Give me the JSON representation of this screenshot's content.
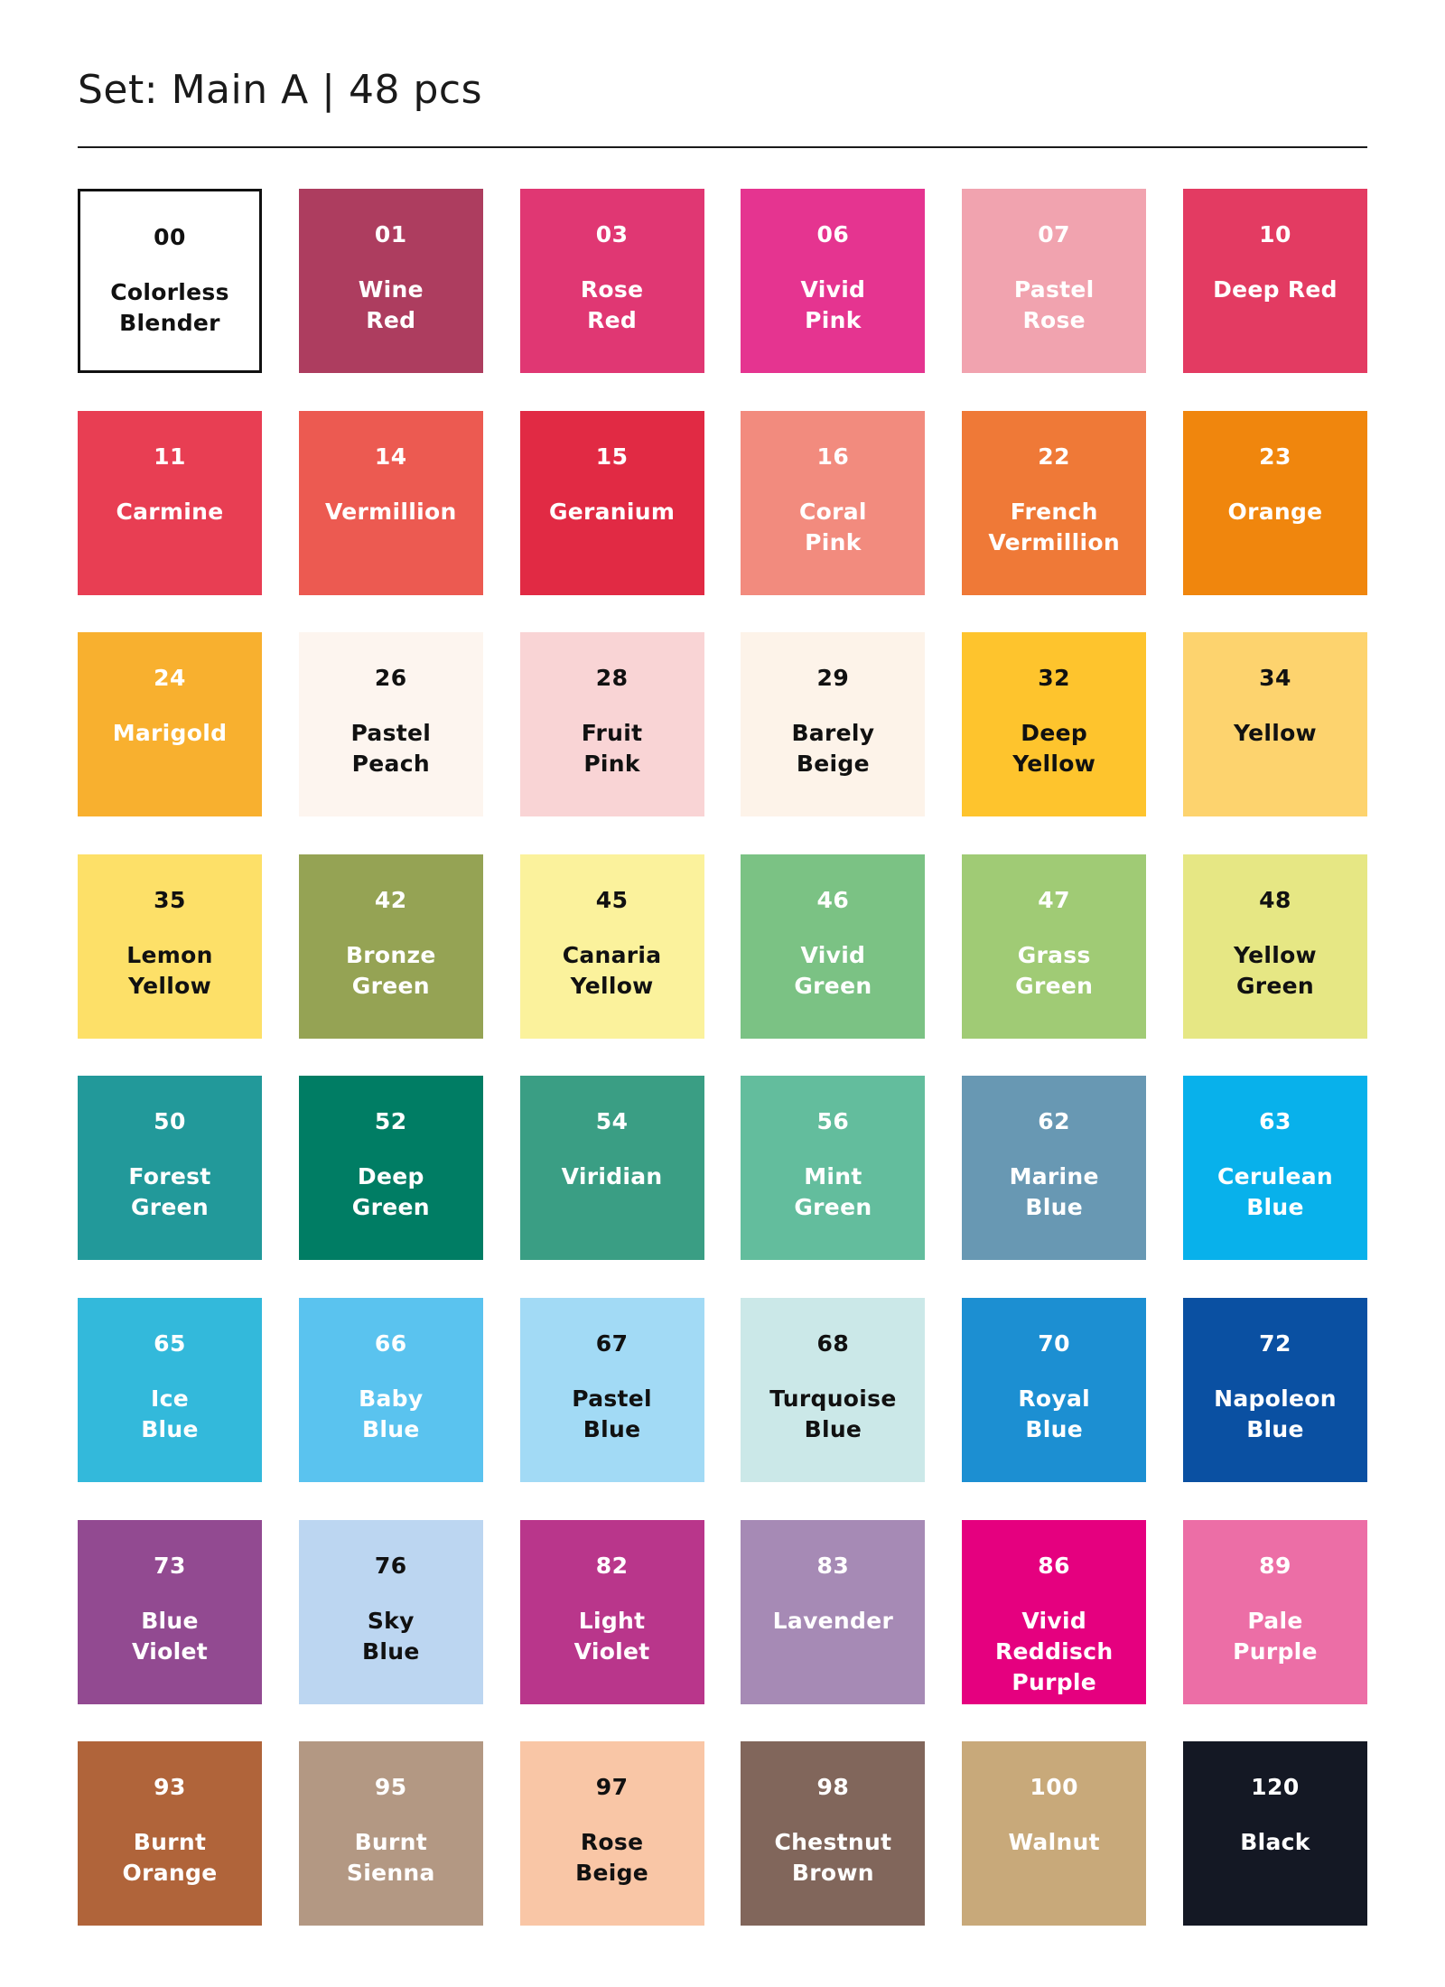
{
  "title": "Set: Main A | 48 pcs",
  "swatches": [
    {
      "code": "00",
      "name": "Colorless\nBlender",
      "bg": "#ffffff",
      "fg": "#111111",
      "outlined": true
    },
    {
      "code": "01",
      "name": "Wine\nRed",
      "bg": "#ad3d5f",
      "fg": "#ffffff"
    },
    {
      "code": "03",
      "name": "Rose\nRed",
      "bg": "#e03773",
      "fg": "#ffffff"
    },
    {
      "code": "06",
      "name": "Vivid\nPink",
      "bg": "#e53490",
      "fg": "#ffffff"
    },
    {
      "code": "07",
      "name": "Pastel\nRose",
      "bg": "#f1a3af",
      "fg": "#ffffff"
    },
    {
      "code": "10",
      "name": "Deep Red",
      "bg": "#e33b62",
      "fg": "#ffffff"
    },
    {
      "code": "11",
      "name": "Carmine",
      "bg": "#e83e53",
      "fg": "#ffffff"
    },
    {
      "code": "14",
      "name": "Vermillion",
      "bg": "#ec5a51",
      "fg": "#ffffff"
    },
    {
      "code": "15",
      "name": "Geranium",
      "bg": "#e12a44",
      "fg": "#ffffff"
    },
    {
      "code": "16",
      "name": "Coral\nPink",
      "bg": "#f28b7e",
      "fg": "#ffffff"
    },
    {
      "code": "22",
      "name": "French\nVermillion",
      "bg": "#ef7937",
      "fg": "#ffffff"
    },
    {
      "code": "23",
      "name": "Orange",
      "bg": "#f0860d",
      "fg": "#ffffff"
    },
    {
      "code": "24",
      "name": "Marigold",
      "bg": "#f8b02f",
      "fg": "#ffffff"
    },
    {
      "code": "26",
      "name": "Pastel\nPeach",
      "bg": "#fdf5ef",
      "fg": "#111111"
    },
    {
      "code": "28",
      "name": "Fruit\nPink",
      "bg": "#f9d4d5",
      "fg": "#111111"
    },
    {
      "code": "29",
      "name": "Barely\nBeige",
      "bg": "#fdf3e9",
      "fg": "#111111"
    },
    {
      "code": "32",
      "name": "Deep\nYellow",
      "bg": "#fec42d",
      "fg": "#111111"
    },
    {
      "code": "34",
      "name": "Yellow",
      "bg": "#fdd36e",
      "fg": "#111111"
    },
    {
      "code": "35",
      "name": "Lemon\nYellow",
      "bg": "#fde068",
      "fg": "#111111"
    },
    {
      "code": "42",
      "name": "Bronze\nGreen",
      "bg": "#95a354",
      "fg": "#ffffff"
    },
    {
      "code": "45",
      "name": "Canaria\nYellow",
      "bg": "#fbf29c",
      "fg": "#111111"
    },
    {
      "code": "46",
      "name": "Vivid\nGreen",
      "bg": "#7bc284",
      "fg": "#ffffff"
    },
    {
      "code": "47",
      "name": "Grass\nGreen",
      "bg": "#a0cb75",
      "fg": "#ffffff"
    },
    {
      "code": "48",
      "name": "Yellow\nGreen",
      "bg": "#e6e784",
      "fg": "#111111"
    },
    {
      "code": "50",
      "name": "Forest\nGreen",
      "bg": "#22999a",
      "fg": "#ffffff"
    },
    {
      "code": "52",
      "name": "Deep\nGreen",
      "bg": "#007d64",
      "fg": "#ffffff"
    },
    {
      "code": "54",
      "name": "Viridian",
      "bg": "#3a9e84",
      "fg": "#ffffff"
    },
    {
      "code": "56",
      "name": "Mint\nGreen",
      "bg": "#63bd9d",
      "fg": "#ffffff"
    },
    {
      "code": "62",
      "name": "Marine\nBlue",
      "bg": "#6898b3",
      "fg": "#ffffff"
    },
    {
      "code": "63",
      "name": "Cerulean\nBlue",
      "bg": "#08b1eb",
      "fg": "#ffffff"
    },
    {
      "code": "65",
      "name": "Ice\nBlue",
      "bg": "#33b9db",
      "fg": "#ffffff"
    },
    {
      "code": "66",
      "name": "Baby\nBlue",
      "bg": "#5ac3ef",
      "fg": "#ffffff"
    },
    {
      "code": "67",
      "name": "Pastel\nBlue",
      "bg": "#a2daf5",
      "fg": "#111111"
    },
    {
      "code": "68",
      "name": "Turquoise\nBlue",
      "bg": "#cbe8e8",
      "fg": "#111111"
    },
    {
      "code": "70",
      "name": "Royal\nBlue",
      "bg": "#1c8fd2",
      "fg": "#ffffff"
    },
    {
      "code": "72",
      "name": "Napoleon\nBlue",
      "bg": "#0a50a2",
      "fg": "#ffffff"
    },
    {
      "code": "73",
      "name": "Blue\nViolet",
      "bg": "#924a91",
      "fg": "#ffffff"
    },
    {
      "code": "76",
      "name": "Sky\nBlue",
      "bg": "#bcd6f1",
      "fg": "#111111"
    },
    {
      "code": "82",
      "name": "Light\nViolet",
      "bg": "#b9368b",
      "fg": "#ffffff"
    },
    {
      "code": "83",
      "name": "Lavender",
      "bg": "#a68ab5",
      "fg": "#ffffff"
    },
    {
      "code": "86",
      "name": "Vivid\nReddisch\nPurple",
      "bg": "#e5007f",
      "fg": "#ffffff"
    },
    {
      "code": "89",
      "name": "Pale\nPurple",
      "bg": "#ec6ea6",
      "fg": "#ffffff"
    },
    {
      "code": "93",
      "name": "Burnt\nOrange",
      "bg": "#b0643a",
      "fg": "#ffffff"
    },
    {
      "code": "95",
      "name": "Burnt\nSienna",
      "bg": "#b39883",
      "fg": "#ffffff"
    },
    {
      "code": "97",
      "name": "Rose\nBeige",
      "bg": "#f9c6a6",
      "fg": "#111111"
    },
    {
      "code": "98",
      "name": "Chestnut\nBrown",
      "bg": "#81665b",
      "fg": "#ffffff"
    },
    {
      "code": "100",
      "name": "Walnut",
      "bg": "#c8a97a",
      "fg": "#ffffff"
    },
    {
      "code": "120",
      "name": "Black",
      "bg": "#141824",
      "fg": "#ffffff"
    }
  ]
}
